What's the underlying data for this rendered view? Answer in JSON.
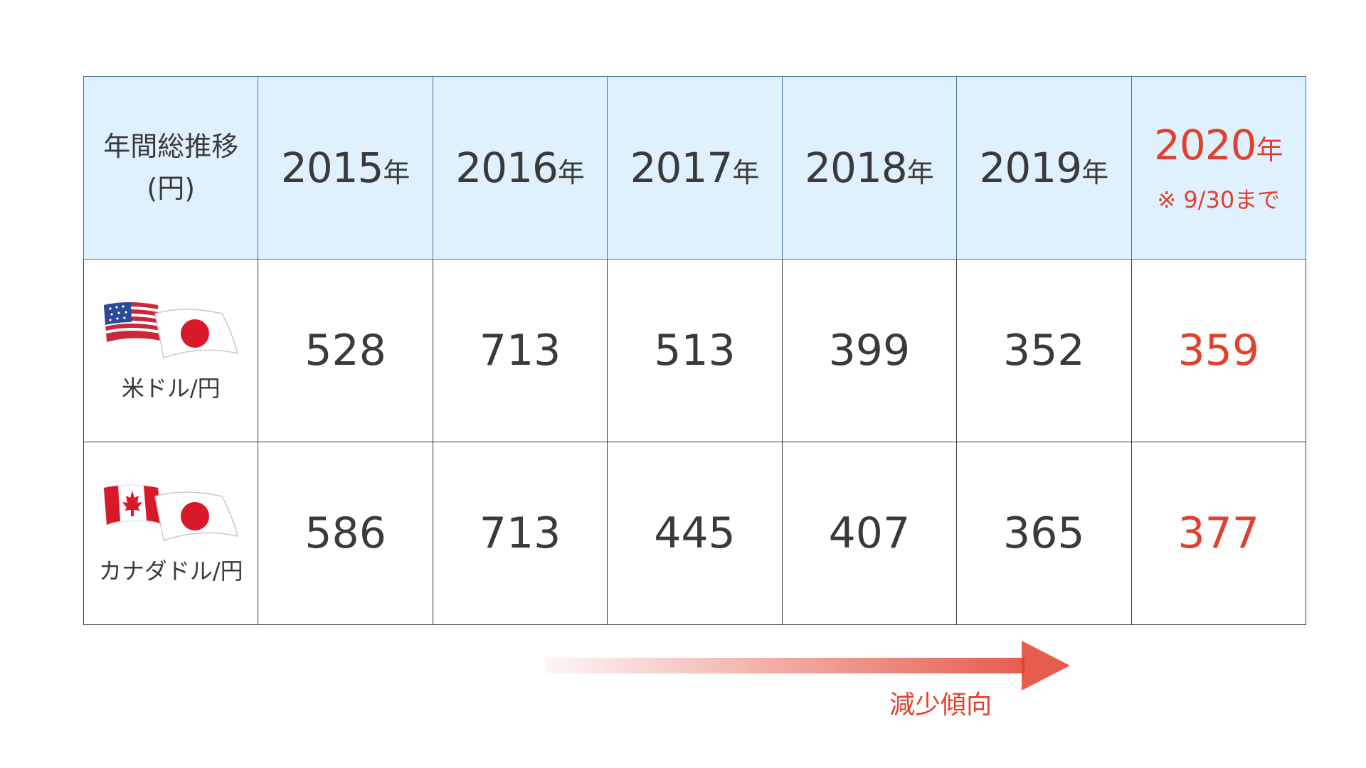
{
  "table": {
    "corner_label_line1": "年間総推移",
    "corner_label_line2": "(円)",
    "year_unit": "年",
    "years": [
      "2015",
      "2016",
      "2017",
      "2018",
      "2019",
      "2020"
    ],
    "latest_note": "※ 9/30まで",
    "rows": [
      {
        "label": "米ドル/円",
        "flags": [
          "us-flag-icon",
          "japan-flag-icon"
        ],
        "values": [
          "528",
          "713",
          "513",
          "399",
          "352",
          "359"
        ]
      },
      {
        "label": "カナダドル/円",
        "flags": [
          "canada-flag-icon",
          "japan-flag-icon"
        ],
        "values": [
          "586",
          "713",
          "445",
          "407",
          "365",
          "377"
        ]
      }
    ]
  },
  "trend": {
    "label": "減少傾向"
  },
  "colors": {
    "header_bg": "#dff1fd",
    "accent": "#e2402e",
    "text": "#3a3a3a",
    "border": "#3c3c3c"
  },
  "chart_data": {
    "type": "table",
    "columns": [
      "2015年",
      "2016年",
      "2017年",
      "2018年",
      "2019年",
      "2020年"
    ],
    "series": [
      {
        "name": "米ドル/円",
        "values": [
          528,
          713,
          513,
          399,
          352,
          359
        ]
      },
      {
        "name": "カナダドル/円",
        "values": [
          586,
          713,
          445,
          407,
          365,
          377
        ]
      }
    ],
    "annotations": [
      "※ 9/30まで",
      "減少傾向"
    ]
  }
}
